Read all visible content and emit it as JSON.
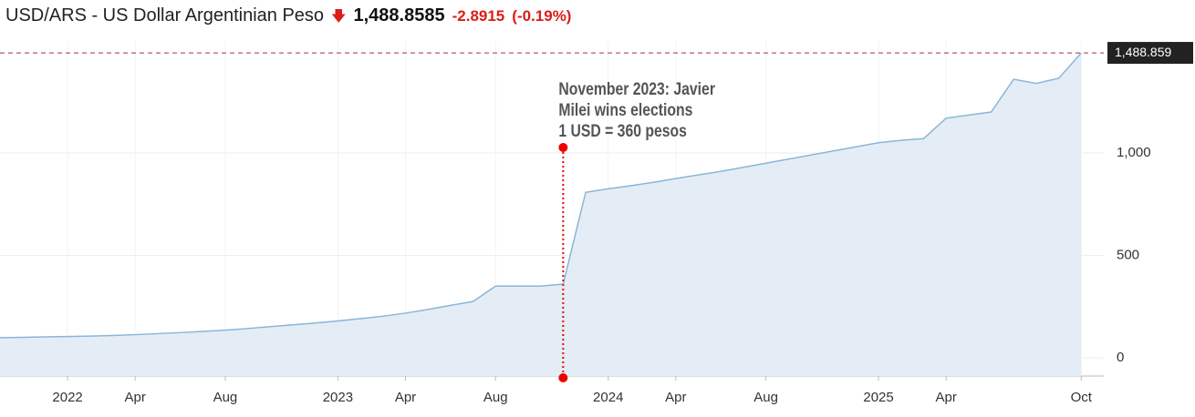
{
  "chart_data": {
    "type": "area",
    "header": {
      "title": "USD/ARS - US Dollar Argentinian Peso",
      "price": "1,488.8585",
      "change": "-2.8915",
      "change_pct": "(-0.19%)"
    },
    "x": [
      "2021-10",
      "2021-11",
      "2021-12",
      "2022-01",
      "2022-02",
      "2022-03",
      "2022-04",
      "2022-05",
      "2022-06",
      "2022-07",
      "2022-08",
      "2022-09",
      "2022-10",
      "2022-11",
      "2022-12",
      "2023-01",
      "2023-02",
      "2023-03",
      "2023-04",
      "2023-05",
      "2023-06",
      "2023-07",
      "2023-08",
      "2023-09",
      "2023-10",
      "2023-11",
      "2023-12",
      "2024-01",
      "2024-02",
      "2024-03",
      "2024-04",
      "2024-05",
      "2024-06",
      "2024-07",
      "2024-08",
      "2024-09",
      "2024-10",
      "2024-11",
      "2024-12",
      "2025-01",
      "2025-02",
      "2025-03",
      "2025-04",
      "2025-05",
      "2025-06",
      "2025-07",
      "2025-08",
      "2025-09",
      "2025-10"
    ],
    "series": [
      {
        "name": "USD/ARS",
        "color": "#8ab6d8",
        "fill": "#e4edf6",
        "values": [
          98,
          100,
          102,
          104,
          106,
          109,
          113,
          118,
          123,
          129,
          135,
          143,
          152,
          161,
          170,
          180,
          191,
          203,
          218,
          236,
          256,
          275,
          350,
          350,
          350,
          360,
          808,
          825,
          840,
          857,
          875,
          893,
          910,
          930,
          950,
          970,
          990,
          1010,
          1030,
          1050,
          1062,
          1070,
          1170,
          1185,
          1200,
          1360,
          1340,
          1365,
          1488.859
        ]
      }
    ],
    "last_label": "1,488.859",
    "xlim": [
      "2021-10",
      "2025-11"
    ],
    "xticks": [
      {
        "value": "2022-01",
        "label": "2022"
      },
      {
        "value": "2022-04",
        "label": "Apr"
      },
      {
        "value": "2022-08",
        "label": "Aug"
      },
      {
        "value": "2023-01",
        "label": "2023"
      },
      {
        "value": "2023-04",
        "label": "Apr"
      },
      {
        "value": "2023-08",
        "label": "Aug"
      },
      {
        "value": "2024-01",
        "label": "2024"
      },
      {
        "value": "2024-04",
        "label": "Apr"
      },
      {
        "value": "2024-08",
        "label": "Aug"
      },
      {
        "value": "2025-01",
        "label": "2025"
      },
      {
        "value": "2025-04",
        "label": "Apr"
      },
      {
        "value": "2025-10",
        "label": "Oct"
      }
    ],
    "ylim": [
      -89,
      1547
    ],
    "yticks": [
      0,
      500,
      {
        "value": 1000,
        "label": "1,000"
      }
    ],
    "grid": true,
    "annotation": {
      "x": "2023-11",
      "lines": [
        "November 2023: Javier",
        "Milei wins elections",
        "1 USD = 360 pesos"
      ]
    }
  }
}
